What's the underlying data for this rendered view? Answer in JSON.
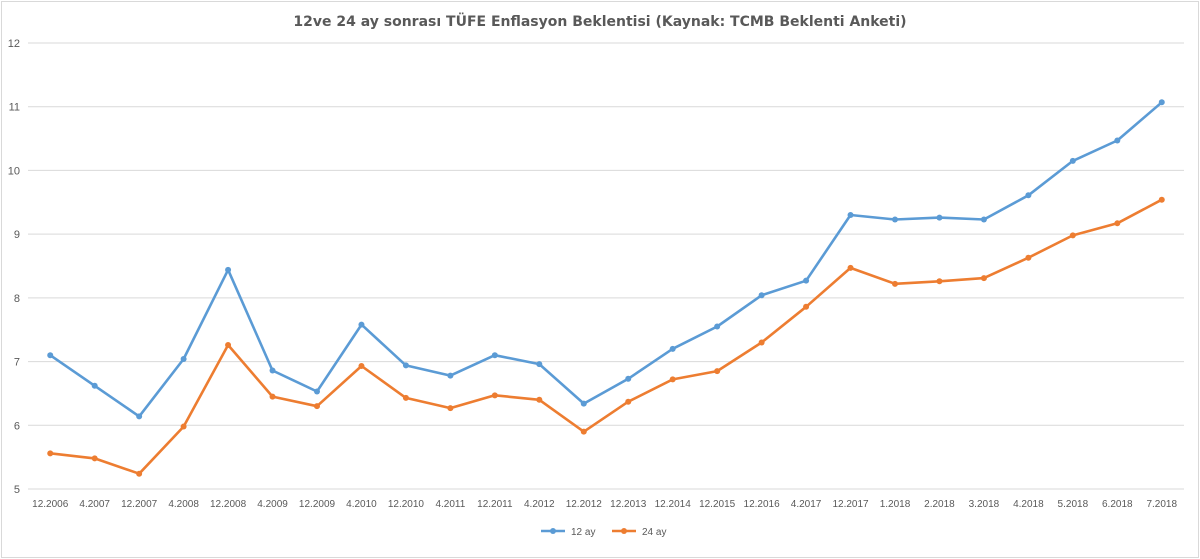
{
  "chart_data": {
    "type": "line",
    "title": "12ve 24 ay sonrası TÜFE Enflasyon Beklentisi (Kaynak: TCMB Beklenti Anketi)",
    "xlabel": "",
    "ylabel": "",
    "ylim": [
      5,
      12
    ],
    "yticks": [
      "5",
      "6",
      "7",
      "8",
      "9",
      "10",
      "11",
      "12"
    ],
    "grid": true,
    "legend": "bottom-center",
    "categories": [
      "12.2006",
      "4.2007",
      "12.2007",
      "4.2008",
      "12.2008",
      "4.2009",
      "12.2009",
      "4.2010",
      "12.2010",
      "4.2011",
      "12.2011",
      "4.2012",
      "12.2012",
      "12.2013",
      "12.2014",
      "12.2015",
      "12.2016",
      "4.2017",
      "12.2017",
      "1.2018",
      "2.2018",
      "3.2018",
      "4.2018",
      "5.2018",
      "6.2018",
      "7.2018"
    ],
    "series": [
      {
        "name": "12 ay",
        "color": "#5b9bd5",
        "values": [
          7.1,
          6.62,
          6.14,
          7.04,
          8.44,
          6.86,
          6.53,
          7.58,
          6.94,
          6.78,
          7.1,
          6.96,
          6.34,
          6.73,
          7.2,
          7.55,
          8.04,
          8.27,
          9.3,
          9.23,
          9.26,
          9.23,
          9.61,
          10.15,
          10.47,
          11.07
        ]
      },
      {
        "name": "24 ay",
        "color": "#ed7d31",
        "values": [
          5.56,
          5.48,
          5.24,
          5.98,
          7.26,
          6.45,
          6.3,
          6.93,
          6.43,
          6.27,
          6.47,
          6.4,
          5.9,
          6.37,
          6.72,
          6.85,
          7.3,
          7.86,
          8.47,
          8.22,
          8.26,
          8.31,
          8.63,
          8.98,
          9.17,
          9.54
        ]
      }
    ]
  }
}
